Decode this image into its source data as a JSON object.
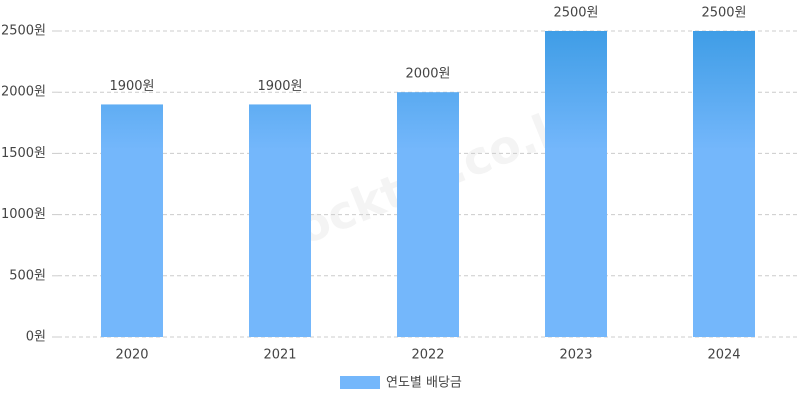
{
  "chart_data": {
    "type": "bar",
    "categories": [
      "2020",
      "2021",
      "2022",
      "2023",
      "2024"
    ],
    "series": [
      {
        "name": "연도별 배당금",
        "color": "#74b7fb",
        "top_color": "#3f9de6",
        "values": [
          1900,
          1900,
          2000,
          2500,
          2500
        ],
        "value_labels": [
          "1900원",
          "1900원",
          "2000원",
          "2500원",
          "2500원"
        ]
      }
    ],
    "ylim": [
      0,
      2500
    ],
    "yticks": [
      {
        "value": 0,
        "label": "0원"
      },
      {
        "value": 500,
        "label": "500원"
      },
      {
        "value": 1000,
        "label": "1000원"
      },
      {
        "value": 1500,
        "label": "1500원"
      },
      {
        "value": 2000,
        "label": "2000원"
      },
      {
        "value": 2500,
        "label": "2500원"
      }
    ],
    "grid": true,
    "legend": "bottom",
    "watermark": "stocktip.co.kr"
  }
}
